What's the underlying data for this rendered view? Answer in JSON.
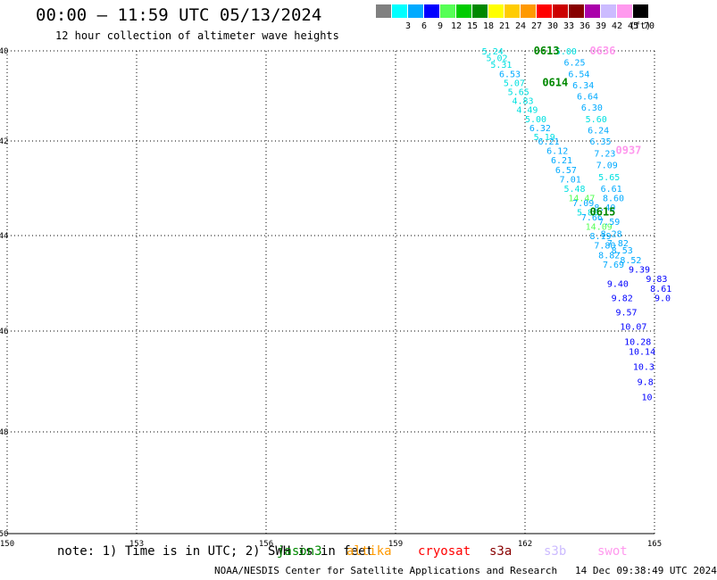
{
  "header": {
    "title": "00:00 — 11:59 UTC 05/13/2024",
    "subtitle": "12 hour collection of altimeter wave heights"
  },
  "legend": {
    "unit": "(ft)",
    "items": [
      {
        "label": "",
        "color": "#808080"
      },
      {
        "label": "3",
        "color": "#00ffff"
      },
      {
        "label": "6",
        "color": "#00aaff"
      },
      {
        "label": "9",
        "color": "#0000ff"
      },
      {
        "label": "12",
        "color": "#55ff55"
      },
      {
        "label": "15",
        "color": "#00cc00"
      },
      {
        "label": "18",
        "color": "#008800"
      },
      {
        "label": "21",
        "color": "#ffff00"
      },
      {
        "label": "24",
        "color": "#ffcc00"
      },
      {
        "label": "27",
        "color": "#ff9900"
      },
      {
        "label": "30",
        "color": "#ff0000"
      },
      {
        "label": "33",
        "color": "#cc0000"
      },
      {
        "label": "36",
        "color": "#880000"
      },
      {
        "label": "39",
        "color": "#aa00aa"
      },
      {
        "label": "42",
        "color": "#ccbbff"
      },
      {
        "label": "45",
        "color": "#ff99ee"
      },
      {
        "label": "70",
        "color": "#000000"
      }
    ]
  },
  "map": {
    "lat_ticks": [
      "40",
      "42",
      "44",
      "46",
      "48",
      "50"
    ],
    "lon_ticks": [
      "150",
      "153",
      "156",
      "159",
      "162",
      "165"
    ],
    "time_labels": [
      {
        "text": "0613",
        "lon": 162.2,
        "lat": -40.0,
        "color": "#008800"
      },
      {
        "text": "0614",
        "lon": 162.4,
        "lat": -40.7,
        "color": "#008800"
      },
      {
        "text": "0636",
        "lon": 163.5,
        "lat": -40.0,
        "color": "#ff99ee"
      },
      {
        "text": "0937",
        "lon": 164.1,
        "lat": -42.2,
        "color": "#ff99ee"
      },
      {
        "text": "0615",
        "lon": 163.5,
        "lat": -43.5,
        "color": "#008800"
      }
    ],
    "tracks": [
      {
        "color": "#00aaff",
        "points": [
          {
            "lon": 161.0,
            "lat": -40.0,
            "v": "5.24"
          },
          {
            "lon": 161.1,
            "lat": -40.15,
            "v": "5.02"
          },
          {
            "lon": 161.2,
            "lat": -40.3,
            "v": "5.31"
          },
          {
            "lon": 161.4,
            "lat": -40.5,
            "v": "6.53"
          },
          {
            "lon": 161.5,
            "lat": -40.7,
            "v": "5.07"
          },
          {
            "lon": 161.6,
            "lat": -40.9,
            "v": "5.65"
          },
          {
            "lon": 161.7,
            "lat": -41.1,
            "v": "4.83"
          },
          {
            "lon": 161.8,
            "lat": -41.3,
            "v": "4.49"
          },
          {
            "lon": 162.0,
            "lat": -41.5,
            "v": "5.00"
          },
          {
            "lon": 162.1,
            "lat": -41.7,
            "v": "6.32"
          },
          {
            "lon": 162.2,
            "lat": -41.9,
            "v": "5.19"
          },
          {
            "lon": 162.3,
            "lat": -42.0,
            "v": "6.21"
          },
          {
            "lon": 162.5,
            "lat": -42.2,
            "v": "6.12"
          },
          {
            "lon": 162.6,
            "lat": -42.4,
            "v": "6.21"
          },
          {
            "lon": 162.7,
            "lat": -42.6,
            "v": "6.57"
          },
          {
            "lon": 162.8,
            "lat": -42.8,
            "v": "7.01"
          },
          {
            "lon": 162.9,
            "lat": -43.0,
            "v": "5.48"
          },
          {
            "lon": 163.0,
            "lat": -43.2,
            "v": "14.47"
          },
          {
            "lon": 163.1,
            "lat": -43.3,
            "v": "7.09"
          },
          {
            "lon": 163.2,
            "lat": -43.5,
            "v": "5.86"
          },
          {
            "lon": 163.3,
            "lat": -43.6,
            "v": "7.66"
          },
          {
            "lon": 163.4,
            "lat": -43.8,
            "v": "14.09"
          },
          {
            "lon": 163.5,
            "lat": -44.0,
            "v": "8.19"
          },
          {
            "lon": 163.6,
            "lat": -44.2,
            "v": "7.80"
          },
          {
            "lon": 163.7,
            "lat": -44.4,
            "v": "8.82"
          },
          {
            "lon": 163.8,
            "lat": -44.6,
            "v": "7.69"
          }
        ]
      },
      {
        "color": "#00aaff",
        "points": [
          {
            "lon": 162.7,
            "lat": -40.0,
            "v": "5.00"
          },
          {
            "lon": 162.9,
            "lat": -40.25,
            "v": "6.25"
          },
          {
            "lon": 163.0,
            "lat": -40.5,
            "v": "6.54"
          },
          {
            "lon": 163.1,
            "lat": -40.75,
            "v": "6.34"
          },
          {
            "lon": 163.2,
            "lat": -41.0,
            "v": "6.64"
          },
          {
            "lon": 163.3,
            "lat": -41.25,
            "v": "6.30"
          },
          {
            "lon": 163.4,
            "lat": -41.5,
            "v": "5.60"
          },
          {
            "lon": 163.45,
            "lat": -41.75,
            "v": "6.24"
          },
          {
            "lon": 163.5,
            "lat": -42.0,
            "v": "6.35"
          },
          {
            "lon": 163.6,
            "lat": -42.25,
            "v": "7.23"
          },
          {
            "lon": 163.65,
            "lat": -42.5,
            "v": "7.09"
          },
          {
            "lon": 163.7,
            "lat": -42.75,
            "v": "5.65"
          },
          {
            "lon": 163.75,
            "lat": -43.0,
            "v": "6.61"
          },
          {
            "lon": 163.8,
            "lat": -43.2,
            "v": "8.60"
          },
          {
            "lon": 163.6,
            "lat": -43.4,
            "v": "8.40"
          },
          {
            "lon": 163.7,
            "lat": -43.7,
            "v": "7.59"
          },
          {
            "lon": 163.75,
            "lat": -43.95,
            "v": "8.28"
          },
          {
            "lon": 163.9,
            "lat": -44.15,
            "v": "7.82"
          },
          {
            "lon": 164.0,
            "lat": -44.3,
            "v": "8.53"
          },
          {
            "lon": 164.2,
            "lat": -44.5,
            "v": "8.52"
          }
        ]
      },
      {
        "color": "#0000ff",
        "points": [
          {
            "lon": 164.4,
            "lat": -44.7,
            "v": "9.39"
          },
          {
            "lon": 164.8,
            "lat": -44.9,
            "v": "9.83"
          },
          {
            "lon": 164.9,
            "lat": -45.1,
            "v": "8.61"
          },
          {
            "lon": 165.0,
            "lat": -45.3,
            "v": "9.0"
          },
          {
            "lon": 163.9,
            "lat": -45.0,
            "v": "9.40"
          },
          {
            "lon": 164.0,
            "lat": -45.3,
            "v": "9.82"
          },
          {
            "lon": 164.1,
            "lat": -45.6,
            "v": "9.57"
          },
          {
            "lon": 164.2,
            "lat": -45.9,
            "v": "10.07"
          },
          {
            "lon": 164.3,
            "lat": -46.2,
            "v": "10.28"
          },
          {
            "lon": 164.4,
            "lat": -46.4,
            "v": "10.14"
          },
          {
            "lon": 164.5,
            "lat": -46.7,
            "v": "10.3"
          },
          {
            "lon": 164.6,
            "lat": -47.0,
            "v": "9.8"
          },
          {
            "lon": 164.7,
            "lat": -47.3,
            "v": "10"
          }
        ]
      }
    ]
  },
  "notes": {
    "note": "note: 1) Time is in UTC; 2) SWH is in feet",
    "satellites": [
      {
        "name": "jason3",
        "color": "#008800"
      },
      {
        "name": "altika",
        "color": "#ff9900"
      },
      {
        "name": "cryosat",
        "color": "#ff0000"
      },
      {
        "name": "s3a",
        "color": "#880000"
      },
      {
        "name": "s3b",
        "color": "#ccbbff"
      },
      {
        "name": "swot",
        "color": "#ff99ee"
      }
    ]
  },
  "footer": {
    "text": "NOAA/NESDIS Center for Satellite Applications and Research   14 Dec 09:38:49 UTC 2024"
  }
}
